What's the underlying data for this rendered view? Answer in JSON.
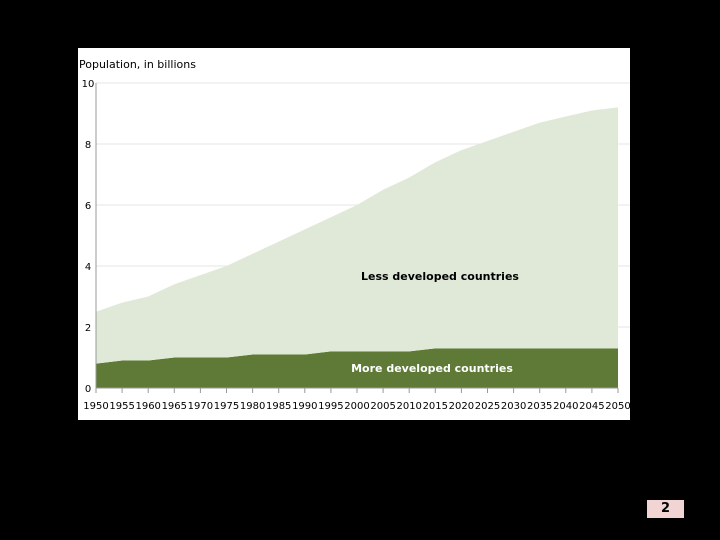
{
  "slide": {
    "page_number": "2"
  },
  "chart_data": {
    "type": "area",
    "title": "Population, in billions",
    "xlabel": "",
    "ylabel": "",
    "x": [
      1950,
      1955,
      1960,
      1965,
      1970,
      1975,
      1980,
      1985,
      1990,
      1995,
      2000,
      2005,
      2010,
      2015,
      2020,
      2025,
      2030,
      2035,
      2040,
      2045,
      2050
    ],
    "y_ticks": [
      0,
      2,
      4,
      6,
      8,
      10
    ],
    "ylim": [
      0,
      10
    ],
    "xlim": [
      1950,
      2050
    ],
    "stacked": true,
    "grid": "horizontal",
    "series": [
      {
        "name": "More developed countries",
        "color": "#5f7a36",
        "values": [
          0.8,
          0.9,
          0.9,
          1.0,
          1.0,
          1.0,
          1.1,
          1.1,
          1.1,
          1.2,
          1.2,
          1.2,
          1.2,
          1.3,
          1.3,
          1.3,
          1.3,
          1.3,
          1.3,
          1.3,
          1.3
        ]
      },
      {
        "name": "Less developed countries",
        "color": "#e0e9d8",
        "values": [
          1.7,
          1.9,
          2.1,
          2.4,
          2.7,
          3.0,
          3.3,
          3.7,
          4.1,
          4.4,
          4.8,
          5.3,
          5.7,
          6.1,
          6.5,
          6.8,
          7.1,
          7.4,
          7.6,
          7.8,
          7.9
        ]
      }
    ]
  }
}
